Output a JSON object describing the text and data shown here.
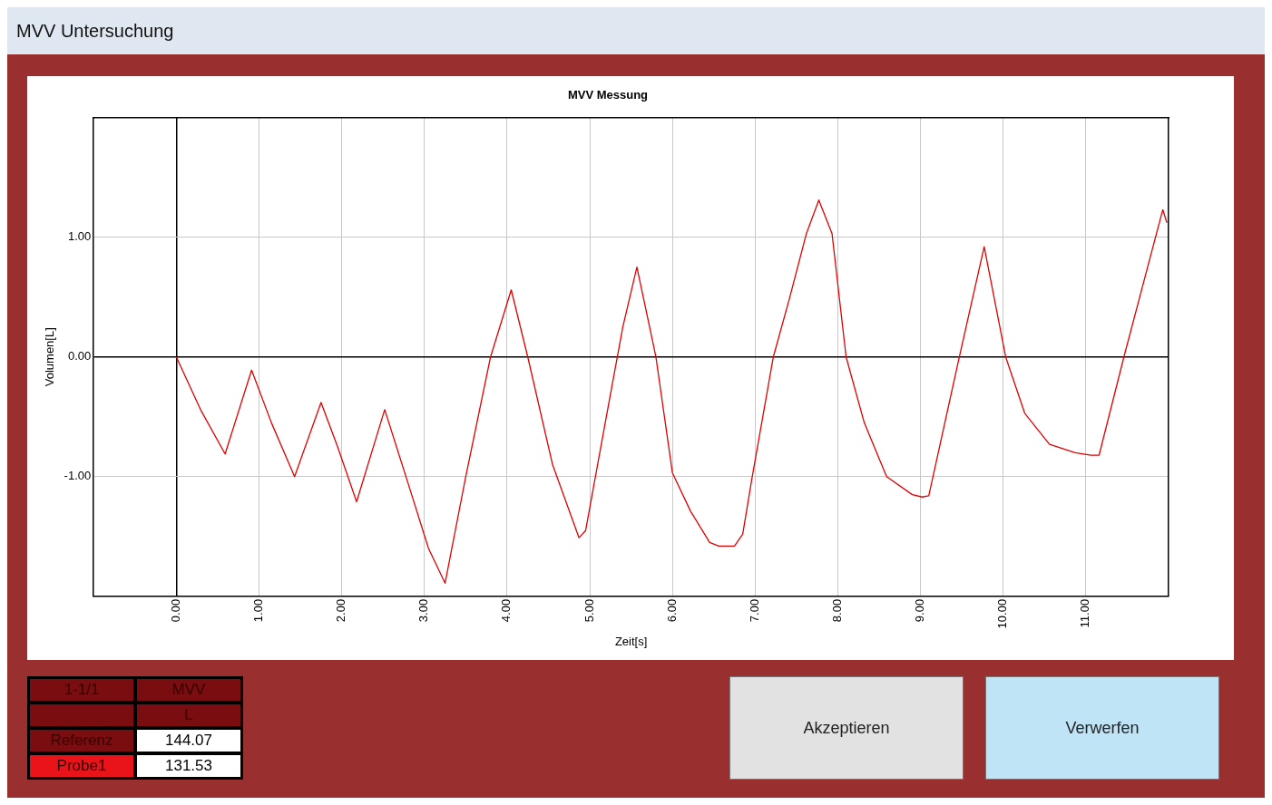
{
  "chart_data": {
    "type": "line",
    "title": "MVV Messung",
    "xlabel": "Zeit[s]",
    "ylabel": "Volumen[L]",
    "annotations": [
      "MVV Untersuchung",
      "1-1/1",
      "MVV",
      "L",
      "Referenz",
      "144.07",
      "Probe1",
      "131.53",
      "Akzeptieren",
      "Verwerfen"
    ],
    "xlim": [
      -1,
      12
    ],
    "ylim": [
      -2,
      2
    ],
    "xticks": [
      {
        "value": 0,
        "label": "0.00"
      },
      {
        "value": 1,
        "label": "1.00"
      },
      {
        "value": 2,
        "label": "2.00"
      },
      {
        "value": 3,
        "label": "3.00"
      },
      {
        "value": 4,
        "label": "4.00"
      },
      {
        "value": 5,
        "label": "5.00"
      },
      {
        "value": 6,
        "label": "6.00"
      },
      {
        "value": 7,
        "label": "7.00"
      },
      {
        "value": 8,
        "label": "8.00"
      },
      {
        "value": 9,
        "label": "9.00"
      },
      {
        "value": 10,
        "label": "10.00"
      },
      {
        "value": 11,
        "label": "11.00"
      }
    ],
    "yticks": [
      {
        "value": -1,
        "label": "-1.00"
      },
      {
        "value": 0,
        "label": "0.00"
      },
      {
        "value": 1,
        "label": "1.00"
      }
    ],
    "grid": true,
    "legend": false,
    "marker": "none",
    "line_style": "solid",
    "series": [
      {
        "color": "#e00000",
        "x": [
          0,
          0.3,
          0.59,
          0.91,
          1.15,
          1.43,
          1.75,
          1.95,
          2.18,
          2.52,
          2.8,
          3.05,
          3.25,
          3.5,
          3.8,
          4.05,
          4.25,
          4.55,
          4.87,
          4.95,
          5.2,
          5.4,
          5.57,
          5.8,
          6.0,
          6.22,
          6.45,
          6.56,
          6.75,
          6.85,
          6.96,
          7.22,
          7.42,
          7.62,
          7.77,
          7.93,
          8.1,
          8.32,
          8.59,
          8.9,
          9.02,
          9.1,
          9.46,
          9.77,
          10.03,
          10.26,
          10.56,
          10.87,
          11.06,
          11.16,
          11.46,
          11.93,
          11.98
        ],
        "values": [
          0,
          -0.45,
          -0.81,
          -0.11,
          -0.55,
          -1.0,
          -0.38,
          -0.75,
          -1.21,
          -0.44,
          -1.05,
          -1.6,
          -1.89,
          -1.0,
          0.0,
          0.56,
          0.0,
          -0.9,
          -1.51,
          -1.45,
          -0.5,
          0.25,
          0.75,
          0.0,
          -0.97,
          -1.29,
          -1.55,
          -1.58,
          -1.58,
          -1.48,
          -1.02,
          0.0,
          0.5,
          1.03,
          1.31,
          1.03,
          0.0,
          -0.55,
          -1.0,
          -1.15,
          -1.17,
          -1.16,
          -0.03,
          0.92,
          0.0,
          -0.47,
          -0.73,
          -0.8,
          -0.82,
          -0.82,
          0.0,
          1.23,
          1.12
        ]
      }
    ]
  }
}
